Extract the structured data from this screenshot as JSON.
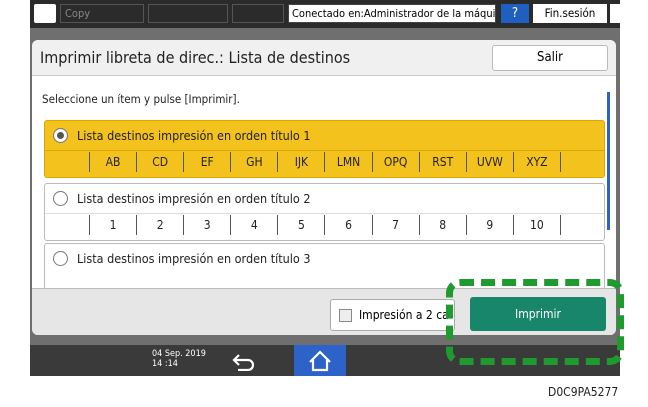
{
  "status_bar": {
    "app": "Copy",
    "connection": "Conectado en:Administrador de la máquina",
    "help": "?",
    "logout": "Fin.sesión"
  },
  "dialog": {
    "title": "Imprimir libreta de direc.: Lista de destinos",
    "exit": "Salir",
    "instruction": "Seleccione un ítem y pulse [Imprimir].",
    "options": [
      {
        "label": "Lista destinos impresión en orden título 1",
        "index": [
          "AB",
          "CD",
          "EF",
          "GH",
          "IJK",
          "LMN",
          "OPQ",
          "RST",
          "UVW",
          "XYZ"
        ]
      },
      {
        "label": "Lista destinos impresión en orden título 2",
        "index": [
          "1",
          "2",
          "3",
          "4",
          "5",
          "6",
          "7",
          "8",
          "9",
          "10"
        ]
      },
      {
        "label": "Lista destinos impresión en orden título 3"
      }
    ],
    "duplex": "Impresión a 2 ca",
    "print": "Imprimir"
  },
  "footer": {
    "date": "04 Sep. 2019",
    "time": "14 :14"
  },
  "figure_id": "D0C9PA5277"
}
